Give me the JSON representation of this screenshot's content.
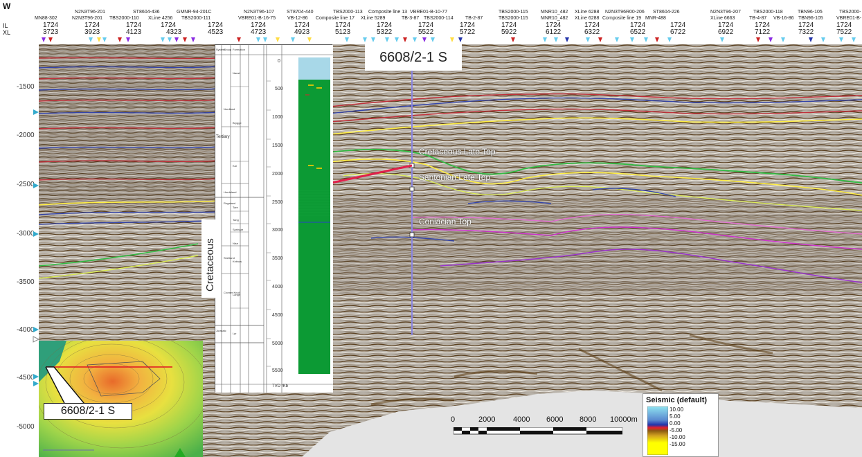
{
  "header": {
    "direction": "W",
    "row_labels": [
      "IL",
      "XL"
    ],
    "lines_top": [
      "N2N3T96-201",
      "ST8604-436",
      "GMNR-94-201C",
      "N2N3T96-107",
      "ST8704-440",
      "TBS2000-113",
      "Composite line 13",
      "VBRE01-B-10-77",
      "TBS2000-115",
      "MNR10_482",
      "XLine 6288",
      "N2N3T96R00-206",
      "ST8604-226",
      "N2N3T96-207",
      "TBS2000-118",
      "TBN96-105",
      "TBS2000-"
    ],
    "lines_bottom": [
      "MN88-302",
      "N2N3T96-201",
      "TBS2000-110",
      "XLine 4256",
      "TBS2000-111",
      "VBRE01-B-16-75",
      "VB-12-86",
      "Composite line 17",
      "XLine 5289",
      "TB-3-87",
      "TBS2000-114",
      "TB-2-87",
      "TBS2000-115",
      "MNR10_482",
      "XLine 6288",
      "Composite line 19",
      "MNR-488",
      "XLine 6663",
      "TB-4-87",
      "VB-16-86",
      "TBN96-105",
      "VBRE01-B-"
    ],
    "il_values": [
      "1724",
      "1724",
      "1724",
      "1724",
      "1724",
      "1724",
      "1724",
      "1724",
      "1724",
      "1724",
      "1724",
      "1724",
      "1724",
      "1724",
      "1724",
      "1724",
      "1724",
      "1724",
      "1724",
      "1724",
      "1724"
    ],
    "xl_values": [
      "3723",
      "3923",
      "4123",
      "4323",
      "4523",
      "4723",
      "4923",
      "5123",
      "5322",
      "5522",
      "5722",
      "5922",
      "6122",
      "6322",
      "6522",
      "6722",
      "6922",
      "7122",
      "7322",
      "7522"
    ]
  },
  "depth_axis": [
    "-1500",
    "-2000",
    "-2500",
    "-3000",
    "-3500",
    "-4000",
    "-4500",
    "-5000"
  ],
  "well": {
    "name": "6608/2-1 S",
    "inset_label": "6608/2-1 S",
    "era_label": "Cretaceous",
    "log_depths": [
      "0",
      "500",
      "1000",
      "1500",
      "2000",
      "2500",
      "3000",
      "3500",
      "4000",
      "4500",
      "5000",
      "5500"
    ],
    "log_footer": "TVD rKb",
    "col_headers": [
      "System",
      "Group",
      "Formation"
    ],
    "strat_labels": [
      "Tertiary",
      "Nordland",
      "Hordaland",
      "Rogaland",
      "Shetland",
      "Cromer Knoll",
      "Jurassic",
      "Naust",
      "Kai",
      "Brygge",
      "Tare",
      "Tang",
      "Springar",
      "Nise",
      "Kvitnos",
      "Lange",
      "Lyr"
    ]
  },
  "horizons": [
    "Cretaceous Late Top",
    "Santonian Late Top",
    "Coniacian Top"
  ],
  "scale": {
    "labels": [
      "0",
      "2000",
      "4000",
      "6000",
      "8000",
      "10000m"
    ]
  },
  "legend": {
    "title": "Seismic (default)",
    "ticks": [
      "10.00",
      "5.00",
      "0.00",
      "-5.00",
      "-10.00",
      "-15.00"
    ],
    "colors": [
      "#8fe3f0",
      "#3b5fd4",
      "#e8202a",
      "#b8860b",
      "#ffff00",
      "#ffffff"
    ]
  }
}
